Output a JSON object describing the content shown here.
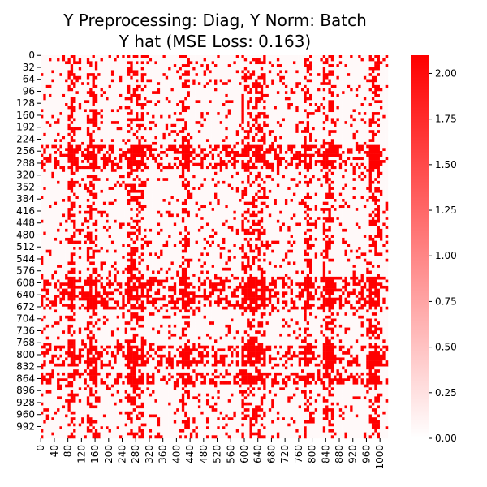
{
  "chart_data": {
    "type": "heatmap",
    "title_line1": "Y Preprocessing: Diag, Y Norm: Batch",
    "title_line2": "Y hat (MSE Loss: 0.163)",
    "xlabel": "",
    "ylabel": "",
    "matrix_size": 1024,
    "x_tick_labels": [
      "0",
      "40",
      "80",
      "120",
      "160",
      "200",
      "240",
      "280",
      "320",
      "360",
      "400",
      "440",
      "480",
      "520",
      "560",
      "600",
      "640",
      "680",
      "720",
      "760",
      "800",
      "840",
      "880",
      "920",
      "960",
      "1000"
    ],
    "y_tick_labels": [
      "0",
      "32",
      "64",
      "96",
      "128",
      "160",
      "192",
      "224",
      "256",
      "288",
      "320",
      "352",
      "384",
      "416",
      "448",
      "480",
      "512",
      "544",
      "576",
      "608",
      "640",
      "672",
      "704",
      "736",
      "768",
      "800",
      "832",
      "864",
      "896",
      "928",
      "960",
      "992"
    ],
    "color_range": [
      0.0,
      2.1
    ],
    "colorbar_ticks": [
      "0.00",
      "0.25",
      "0.50",
      "0.75",
      "1.00",
      "1.25",
      "1.50",
      "1.75",
      "2.00"
    ],
    "colormap": [
      "#ffffff",
      "#ff0000"
    ],
    "value_levels": [
      0.05,
      2.1
    ],
    "note_values": "Binary-like pattern; cells are either near 0 (white) or near 2.1 (red). Block structure approximated.",
    "red_row_segments": [
      [
        240,
        300
      ],
      [
        590,
        680
      ],
      [
        780,
        830
      ],
      [
        850,
        880
      ]
    ],
    "red_col_segments": [
      [
        80,
        100
      ],
      [
        140,
        170
      ],
      [
        260,
        300
      ],
      [
        420,
        440
      ],
      [
        590,
        660
      ],
      [
        780,
        800
      ],
      [
        830,
        860
      ],
      [
        970,
        1000
      ]
    ]
  }
}
